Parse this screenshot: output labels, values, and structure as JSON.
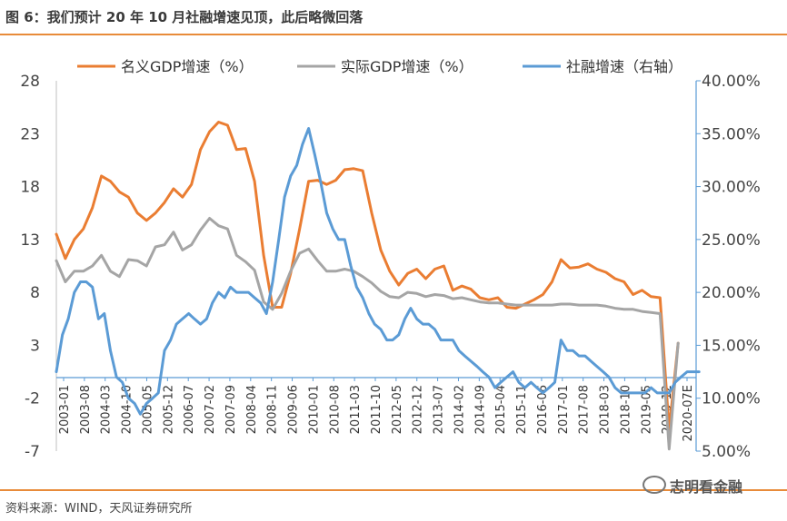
{
  "header": {
    "title": "图 6：我们预计 20 年 10 月社融增速见顶，此后略微回落"
  },
  "footer": {
    "source": "资料来源：WIND，天风证券研究所",
    "watermark": "志明看金融"
  },
  "colors": {
    "nominal": "#ea7d32",
    "real": "#a5a5a5",
    "tsf": "#5b9bd5",
    "rule": "#e88b3a"
  },
  "chart_data": {
    "type": "line",
    "title": "",
    "legend": {
      "placement": "top",
      "entries": [
        "名义GDP增速（%）",
        "实际GDP增速（%）",
        "社融增速（右轴）"
      ]
    },
    "y_left": {
      "ticks": [
        "28",
        "23",
        "18",
        "13",
        "8",
        "3",
        "-2",
        "-7"
      ],
      "range": [
        -7,
        28
      ]
    },
    "y_right": {
      "ticks": [
        "40.00%",
        "35.00%",
        "30.00%",
        "25.00%",
        "20.00%",
        "15.00%",
        "10.00%",
        "5.00%"
      ],
      "range": [
        5,
        40
      ]
    },
    "x_ticks": [
      "2003-01",
      "2003-08",
      "2004-03",
      "2004-10",
      "2005-05",
      "2005-12",
      "2006-07",
      "2007-02",
      "2007-09",
      "2008-04",
      "2008-11",
      "2009-06",
      "2010-01",
      "2010-08",
      "2011-03",
      "2011-10",
      "2012-05",
      "2012-12",
      "2013-07",
      "2014-02",
      "2014-09",
      "2015-04",
      "2015-11",
      "2016-06",
      "2017-01",
      "2017-08",
      "2018-03",
      "2018-10",
      "2019-05",
      "2019-12",
      "2020-07E"
    ],
    "grid": false,
    "series": [
      {
        "name": "名义GDP增速（%）",
        "axis": "left",
        "x": [
          2003.0,
          2003.25,
          2003.5,
          2003.75,
          2004.0,
          2004.25,
          2004.5,
          2004.75,
          2005.0,
          2005.25,
          2005.5,
          2005.75,
          2006.0,
          2006.25,
          2006.5,
          2006.75,
          2007.0,
          2007.25,
          2007.5,
          2007.75,
          2008.0,
          2008.25,
          2008.5,
          2008.75,
          2009.0,
          2009.25,
          2009.5,
          2009.75,
          2010.0,
          2010.25,
          2010.5,
          2010.75,
          2011.0,
          2011.25,
          2011.5,
          2011.75,
          2012.0,
          2012.25,
          2012.5,
          2012.75,
          2013.0,
          2013.25,
          2013.5,
          2013.75,
          2014.0,
          2014.25,
          2014.5,
          2014.75,
          2015.0,
          2015.25,
          2015.5,
          2015.75,
          2016.0,
          2016.25,
          2016.5,
          2016.75,
          2017.0,
          2017.25,
          2017.5,
          2017.75,
          2018.0,
          2018.25,
          2018.5,
          2018.75,
          2019.0,
          2019.25,
          2019.5,
          2019.75,
          2020.0,
          2020.25,
          2020.5,
          2020.75
        ],
        "values": [
          13.5,
          11.2,
          13.0,
          14.0,
          16.0,
          19.0,
          18.5,
          17.5,
          17.0,
          15.5,
          14.8,
          15.5,
          16.5,
          17.8,
          17.0,
          18.2,
          21.5,
          23.2,
          24.1,
          23.8,
          21.5,
          21.6,
          18.5,
          11.5,
          6.6,
          6.6,
          9.8,
          14.0,
          18.5,
          18.6,
          18.2,
          18.6,
          19.6,
          19.7,
          19.5,
          15.5,
          12.0,
          10.0,
          8.7,
          9.8,
          10.2,
          9.3,
          10.2,
          10.5,
          8.2,
          8.6,
          8.3,
          7.5,
          7.3,
          7.5,
          6.6,
          6.5,
          6.9,
          7.3,
          7.8,
          9.0,
          11.1,
          10.3,
          10.4,
          10.7,
          10.2,
          9.9,
          9.3,
          9.0,
          7.8,
          8.2,
          7.6,
          7.5,
          -5.0,
          3.2,
          null,
          null
        ]
      },
      {
        "name": "实际GDP增速（%）",
        "axis": "left",
        "x": [
          2003.0,
          2003.25,
          2003.5,
          2003.75,
          2004.0,
          2004.25,
          2004.5,
          2004.75,
          2005.0,
          2005.25,
          2005.5,
          2005.75,
          2006.0,
          2006.25,
          2006.5,
          2006.75,
          2007.0,
          2007.25,
          2007.5,
          2007.75,
          2008.0,
          2008.25,
          2008.5,
          2008.75,
          2009.0,
          2009.25,
          2009.5,
          2009.75,
          2010.0,
          2010.25,
          2010.5,
          2010.75,
          2011.0,
          2011.25,
          2011.5,
          2011.75,
          2012.0,
          2012.25,
          2012.5,
          2012.75,
          2013.0,
          2013.25,
          2013.5,
          2013.75,
          2014.0,
          2014.25,
          2014.5,
          2014.75,
          2015.0,
          2015.25,
          2015.5,
          2015.75,
          2016.0,
          2016.25,
          2016.5,
          2016.75,
          2017.0,
          2017.25,
          2017.5,
          2017.75,
          2018.0,
          2018.25,
          2018.5,
          2018.75,
          2019.0,
          2019.25,
          2019.5,
          2019.75,
          2020.0,
          2020.25,
          2020.5,
          2020.75
        ],
        "values": [
          11.0,
          9.0,
          10.0,
          10.0,
          10.5,
          11.5,
          10.0,
          9.5,
          11.1,
          11.0,
          10.5,
          12.3,
          12.5,
          13.7,
          12.0,
          12.5,
          13.9,
          15.0,
          14.3,
          14.0,
          11.5,
          10.9,
          10.1,
          7.1,
          6.4,
          7.9,
          10.0,
          11.7,
          12.1,
          11.0,
          10.0,
          10.0,
          10.2,
          10.0,
          9.5,
          8.9,
          8.1,
          7.6,
          7.5,
          8.0,
          7.9,
          7.6,
          7.8,
          7.7,
          7.4,
          7.5,
          7.3,
          7.1,
          7.0,
          7.0,
          6.9,
          6.8,
          6.8,
          6.8,
          6.8,
          6.8,
          6.9,
          6.9,
          6.8,
          6.8,
          6.8,
          6.7,
          6.5,
          6.4,
          6.4,
          6.2,
          6.1,
          6.0,
          -6.8,
          3.2,
          null,
          null
        ]
      },
      {
        "name": "社融增速（右轴）",
        "axis": "right",
        "x": [
          2003.0,
          2003.17,
          2003.33,
          2003.5,
          2003.67,
          2003.83,
          2004.0,
          2004.17,
          2004.33,
          2004.5,
          2004.67,
          2004.83,
          2005.0,
          2005.17,
          2005.33,
          2005.5,
          2005.67,
          2005.83,
          2006.0,
          2006.17,
          2006.33,
          2006.5,
          2006.67,
          2006.83,
          2007.0,
          2007.17,
          2007.33,
          2007.5,
          2007.67,
          2007.83,
          2008.0,
          2008.17,
          2008.33,
          2008.5,
          2008.67,
          2008.83,
          2009.0,
          2009.17,
          2009.33,
          2009.5,
          2009.67,
          2009.83,
          2010.0,
          2010.17,
          2010.33,
          2010.5,
          2010.67,
          2010.83,
          2011.0,
          2011.17,
          2011.33,
          2011.5,
          2011.67,
          2011.83,
          2012.0,
          2012.17,
          2012.33,
          2012.5,
          2012.67,
          2012.83,
          2013.0,
          2013.17,
          2013.33,
          2013.5,
          2013.67,
          2013.83,
          2014.0,
          2014.17,
          2014.33,
          2014.5,
          2014.67,
          2014.83,
          2015.0,
          2015.17,
          2015.33,
          2015.5,
          2015.67,
          2015.83,
          2016.0,
          2016.17,
          2016.33,
          2016.5,
          2016.67,
          2016.83,
          2017.0,
          2017.17,
          2017.33,
          2017.5,
          2017.67,
          2017.83,
          2018.0,
          2018.17,
          2018.33,
          2018.5,
          2018.67,
          2018.83,
          2019.0,
          2019.17,
          2019.33,
          2019.5,
          2019.67,
          2019.83,
          2020.0,
          2020.17,
          2020.33,
          2020.5,
          2020.67,
          2020.83
        ],
        "values": [
          12.5,
          16.0,
          17.5,
          20.0,
          21.0,
          21.0,
          20.5,
          17.5,
          18.0,
          14.5,
          12.0,
          11.5,
          10.0,
          9.5,
          8.5,
          9.5,
          10.0,
          10.5,
          14.5,
          15.5,
          17.0,
          17.5,
          18.0,
          17.5,
          17.0,
          17.5,
          19.0,
          20.0,
          19.5,
          20.5,
          20.0,
          20.0,
          20.0,
          19.5,
          19.0,
          18.0,
          21.0,
          25.0,
          29.0,
          31.0,
          32.0,
          34.0,
          35.5,
          33.0,
          30.5,
          27.5,
          26.0,
          25.0,
          25.0,
          22.5,
          20.5,
          19.5,
          18.0,
          17.0,
          16.5,
          15.5,
          15.5,
          16.0,
          17.5,
          18.5,
          17.5,
          17.0,
          17.0,
          16.5,
          15.5,
          15.5,
          15.5,
          14.5,
          14.0,
          13.5,
          13.0,
          12.5,
          12.0,
          11.0,
          11.5,
          12.0,
          12.5,
          11.5,
          11.0,
          11.5,
          11.0,
          10.5,
          11.0,
          11.5,
          15.5,
          14.5,
          14.5,
          14.0,
          14.0,
          13.5,
          13.0,
          12.5,
          12.0,
          11.0,
          10.5,
          10.5,
          10.5,
          10.5,
          10.5,
          11.0,
          10.5,
          10.5,
          10.5,
          11.5,
          12.0,
          12.5,
          12.5,
          12.5
        ]
      }
    ]
  }
}
